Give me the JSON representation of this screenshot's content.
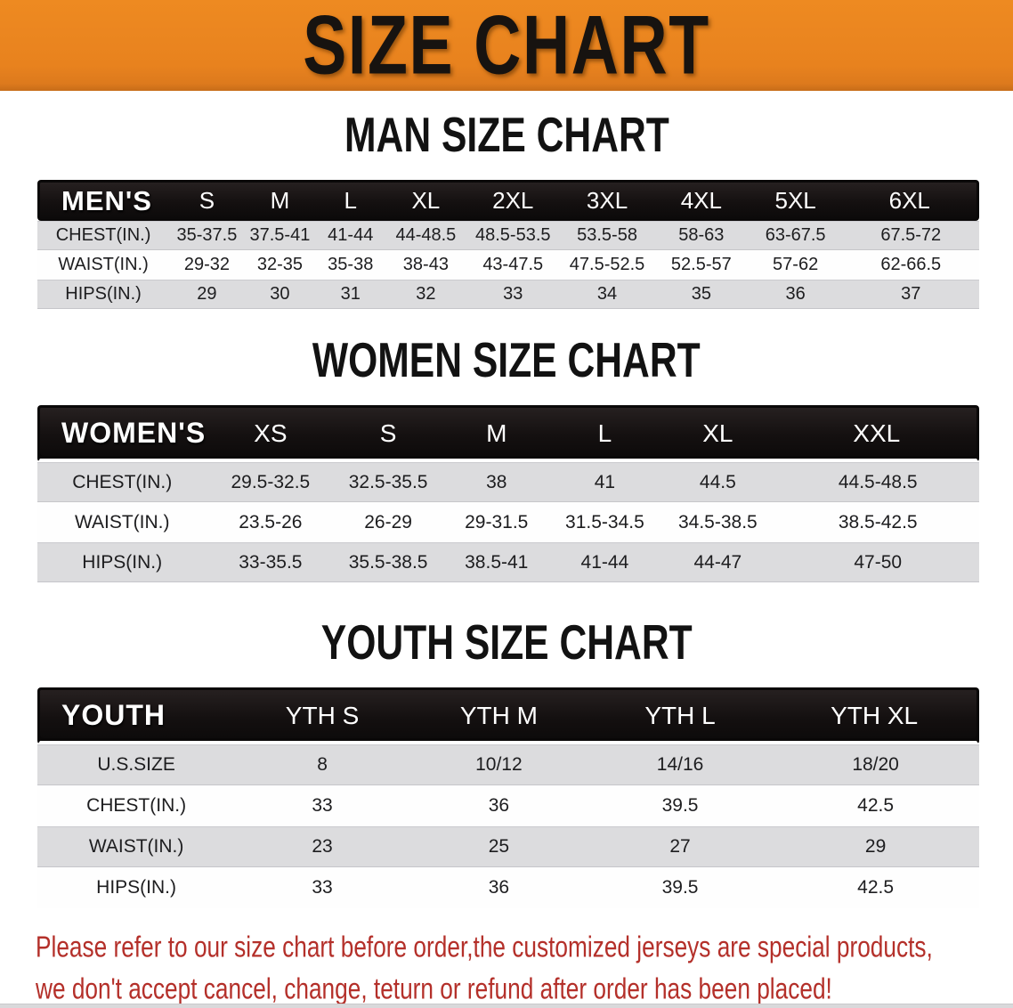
{
  "banner": {
    "title": "SIZE CHART"
  },
  "sections": [
    {
      "title": "MAN SIZE CHART",
      "table": {
        "header_label": "MEN'S",
        "columns": [
          "S",
          "M",
          "L",
          "XL",
          "2XL",
          "3XL",
          "4XL",
          "5XL",
          "6XL"
        ],
        "rows": [
          {
            "label": "CHEST(IN.)",
            "values": [
              "35-37.5",
              "37.5-41",
              "41-44",
              "44-48.5",
              "48.5-53.5",
              "53.5-58",
              "58-63",
              "63-67.5",
              "67.5-72"
            ]
          },
          {
            "label": "WAIST(IN.)",
            "values": [
              "29-32",
              "32-35",
              "35-38",
              "38-43",
              "43-47.5",
              "47.5-52.5",
              "52.5-57",
              "57-62",
              "62-66.5"
            ]
          },
          {
            "label": "HIPS(IN.)",
            "values": [
              "29",
              "30",
              "31",
              "32",
              "33",
              "34",
              "35",
              "36",
              "37"
            ]
          }
        ]
      }
    },
    {
      "title": "WOMEN SIZE CHART",
      "table": {
        "header_label": "WOMEN'S",
        "columns": [
          "XS",
          "S",
          "M",
          "L",
          "XL",
          "XXL"
        ],
        "rows": [
          {
            "label": "CHEST(IN.)",
            "values": [
              "29.5-32.5",
              "32.5-35.5",
              "38",
              "41",
              "44.5",
              "44.5-48.5"
            ]
          },
          {
            "label": "WAIST(IN.)",
            "values": [
              "23.5-26",
              "26-29",
              "29-31.5",
              "31.5-34.5",
              "34.5-38.5",
              "38.5-42.5"
            ]
          },
          {
            "label": "HIPS(IN.)",
            "values": [
              "33-35.5",
              "35.5-38.5",
              "38.5-41",
              "41-44",
              "44-47",
              "47-50"
            ]
          }
        ]
      }
    },
    {
      "title": "YOUTH SIZE CHART",
      "table": {
        "header_label": "YOUTH",
        "columns": [
          "YTH S",
          "YTH M",
          "YTH L",
          "YTH XL"
        ],
        "rows": [
          {
            "label": "U.S.SIZE",
            "values": [
              "8",
              "10/12",
              "14/16",
              "18/20"
            ]
          },
          {
            "label": "CHEST(IN.)",
            "values": [
              "33",
              "36",
              "39.5",
              "42.5"
            ]
          },
          {
            "label": "WAIST(IN.)",
            "values": [
              "23",
              "25",
              "27",
              "29"
            ]
          },
          {
            "label": "HIPS(IN.)",
            "values": [
              "33",
              "36",
              "39.5",
              "42.5"
            ]
          }
        ]
      }
    }
  ],
  "note": {
    "line1": "Please refer to our size chart before order,the customized jerseys are special products,",
    "line2": "we don't accept cancel, change, teturn or refund after order has been placed!"
  },
  "colors": {
    "banner_orange": "#E8821E",
    "header_bar_black": "#141010",
    "row_gray": "#DCDCDE",
    "row_white": "#FEFEFE",
    "note_red": "#B4302A",
    "title_black": "#121212"
  }
}
